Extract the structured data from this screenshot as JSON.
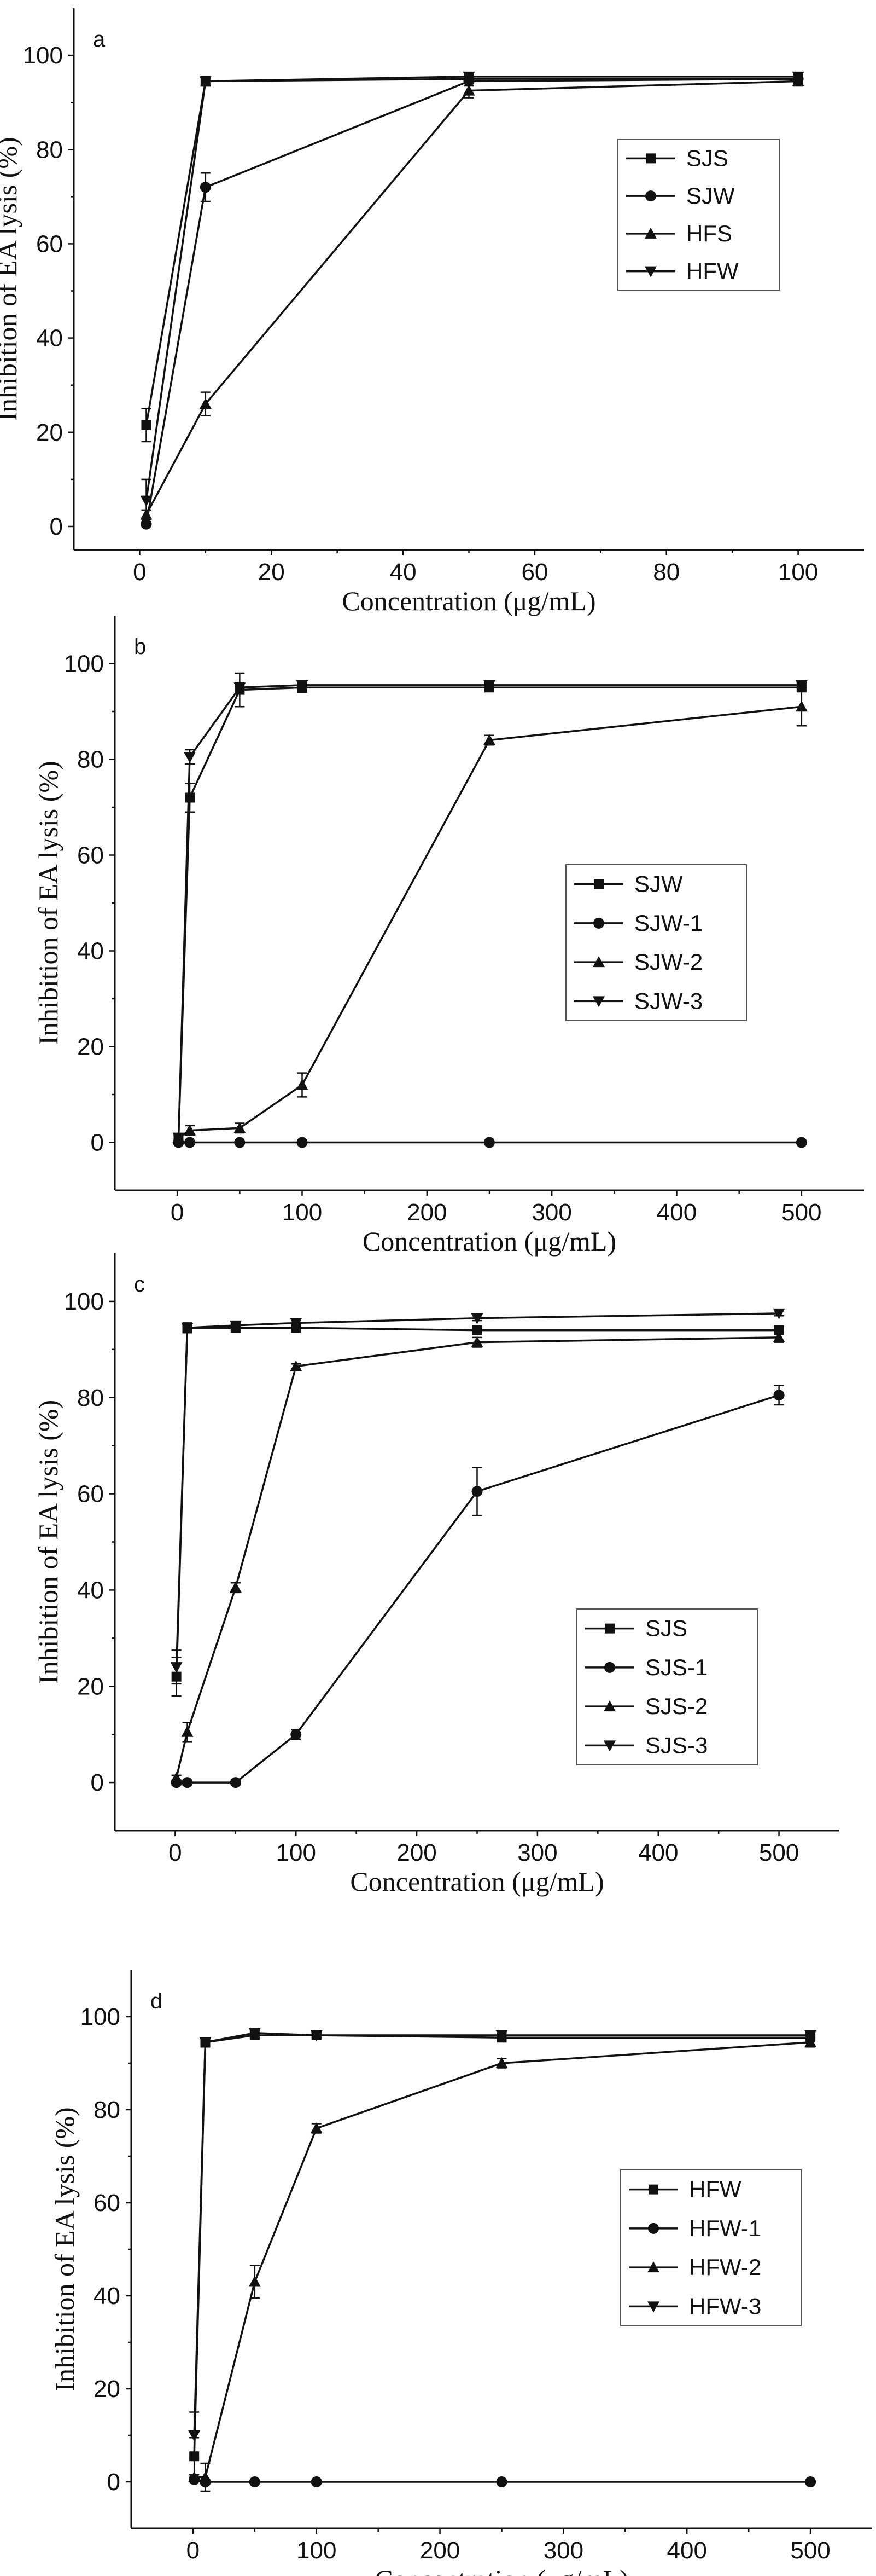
{
  "chart_data": [
    {
      "type": "line",
      "panel_label": "a",
      "xlabel": "Concentration (μg/mL)",
      "ylabel": "Inhibition of EA lysis (%)",
      "xlim": [
        -10,
        110
      ],
      "ylim": [
        -5,
        110
      ],
      "xticks": [
        0,
        20,
        40,
        60,
        80,
        100
      ],
      "yticks": [
        0,
        20,
        40,
        60,
        80,
        100
      ],
      "legend_position": "center-right",
      "series": [
        {
          "name": "SJS",
          "marker": "square",
          "x": [
            1,
            10,
            50,
            100
          ],
          "y": [
            21.5,
            94.5,
            95.0,
            95.0
          ],
          "err": [
            3.5,
            1.0,
            0.5,
            0.5
          ]
        },
        {
          "name": "SJW",
          "marker": "circle",
          "x": [
            1,
            10,
            50,
            100
          ],
          "y": [
            0.5,
            72.0,
            94.5,
            95.0
          ],
          "err": [
            0.5,
            3.0,
            1.0,
            0.5
          ]
        },
        {
          "name": "HFS",
          "marker": "triangle-up",
          "x": [
            1,
            10,
            50,
            100
          ],
          "y": [
            2.5,
            26.0,
            92.5,
            94.5
          ],
          "err": [
            1.0,
            2.5,
            1.5,
            1.0
          ]
        },
        {
          "name": "HFW",
          "marker": "triangle-down",
          "x": [
            1,
            10,
            50,
            100
          ],
          "y": [
            5.5,
            94.5,
            95.5,
            95.5
          ],
          "err": [
            4.5,
            1.0,
            0.5,
            0.5
          ]
        }
      ]
    },
    {
      "type": "line",
      "panel_label": "b",
      "xlabel": "Concentration (μg/mL)",
      "ylabel": "Inhibition of EA lysis (%)",
      "xlim": [
        -50,
        550
      ],
      "ylim": [
        -10,
        110
      ],
      "xticks": [
        0,
        100,
        200,
        300,
        400,
        500
      ],
      "yticks": [
        0,
        20,
        40,
        60,
        80,
        100
      ],
      "legend_position": "center-right",
      "series": [
        {
          "name": "SJW",
          "marker": "square",
          "x": [
            1,
            10,
            50,
            100,
            250,
            500
          ],
          "y": [
            1.0,
            72.0,
            94.5,
            95.0,
            95.0,
            95.0
          ],
          "err": [
            0.5,
            3.0,
            3.5,
            1.0,
            0.5,
            0.5
          ]
        },
        {
          "name": "SJW-1",
          "marker": "circle",
          "x": [
            1,
            10,
            50,
            100,
            250,
            500
          ],
          "y": [
            0,
            0,
            0,
            0,
            0,
            0
          ],
          "err": [
            0,
            0,
            0,
            0,
            0,
            0
          ]
        },
        {
          "name": "SJW-2",
          "marker": "triangle-up",
          "x": [
            1,
            10,
            50,
            100,
            250,
            500
          ],
          "y": [
            1.0,
            2.5,
            3.0,
            12.0,
            84.0,
            91.0
          ],
          "err": [
            0.5,
            1.0,
            1.0,
            2.5,
            1.0,
            4.0
          ]
        },
        {
          "name": "SJW-3",
          "marker": "triangle-down",
          "x": [
            1,
            10,
            50,
            100,
            250,
            500
          ],
          "y": [
            1.0,
            80.5,
            95.0,
            95.5,
            95.5,
            95.5
          ],
          "err": [
            0.5,
            1.5,
            1.0,
            0.5,
            0.5,
            0.5
          ]
        }
      ]
    },
    {
      "type": "line",
      "panel_label": "c",
      "xlabel": "Concentration (μg/mL)",
      "ylabel": "Inhibition of EA lysis (%)",
      "xlim": [
        -50,
        550
      ],
      "ylim": [
        -10,
        110
      ],
      "xticks": [
        0,
        100,
        200,
        300,
        400,
        500
      ],
      "yticks": [
        0,
        20,
        40,
        60,
        80,
        100
      ],
      "legend_position": "center-right",
      "series": [
        {
          "name": "SJS",
          "marker": "square",
          "x": [
            1,
            10,
            50,
            100,
            250,
            500
          ],
          "y": [
            22.0,
            94.5,
            94.5,
            94.5,
            94.0,
            94.0
          ],
          "err": [
            4.0,
            1.0,
            0.5,
            0.5,
            0.5,
            0.5
          ]
        },
        {
          "name": "SJS-1",
          "marker": "circle",
          "x": [
            1,
            10,
            50,
            100,
            250,
            500
          ],
          "y": [
            0,
            0,
            0,
            10.0,
            60.5,
            80.5
          ],
          "err": [
            0.5,
            0.5,
            0.5,
            1.0,
            5.0,
            2.0
          ]
        },
        {
          "name": "SJS-2",
          "marker": "triangle-up",
          "x": [
            1,
            10,
            50,
            100,
            250,
            500
          ],
          "y": [
            1.0,
            10.5,
            40.5,
            86.5,
            91.5,
            92.5
          ],
          "err": [
            0.5,
            2.0,
            1.0,
            0.5,
            1.0,
            1.0
          ]
        },
        {
          "name": "SJS-3",
          "marker": "triangle-down",
          "x": [
            1,
            10,
            50,
            100,
            250,
            500
          ],
          "y": [
            24.0,
            94.5,
            95.0,
            95.5,
            96.5,
            97.5
          ],
          "err": [
            3.5,
            1.0,
            0.5,
            0.5,
            0.5,
            0.5
          ]
        }
      ]
    },
    {
      "type": "line",
      "panel_label": "d",
      "xlabel": "Concentration (μg/mL)",
      "ylabel": "Inhibition of EA lysis (%)",
      "xlim": [
        -50,
        550
      ],
      "ylim": [
        -10,
        110
      ],
      "xticks": [
        0,
        100,
        200,
        300,
        400,
        500
      ],
      "yticks": [
        0,
        20,
        40,
        60,
        80,
        100
      ],
      "legend_position": "center-right",
      "series": [
        {
          "name": "HFW",
          "marker": "square",
          "x": [
            1,
            10,
            50,
            100,
            250,
            500
          ],
          "y": [
            5.5,
            94.5,
            96.0,
            96.0,
            95.5,
            95.5
          ],
          "err": [
            4.0,
            1.0,
            0.5,
            0.5,
            0.5,
            0.5
          ]
        },
        {
          "name": "HFW-1",
          "marker": "circle",
          "x": [
            1,
            10,
            50,
            100,
            250,
            500
          ],
          "y": [
            0.5,
            0,
            0,
            0,
            0,
            0
          ],
          "err": [
            0.5,
            0.5,
            0,
            0,
            0,
            0
          ]
        },
        {
          "name": "HFW-2",
          "marker": "triangle-up",
          "x": [
            1,
            10,
            50,
            100,
            250,
            500
          ],
          "y": [
            1.0,
            1.0,
            43.0,
            76.0,
            90.0,
            94.5
          ],
          "err": [
            0.5,
            3.0,
            3.5,
            1.0,
            1.0,
            1.0
          ]
        },
        {
          "name": "HFW-3",
          "marker": "triangle-down",
          "x": [
            1,
            10,
            50,
            100,
            250,
            500
          ],
          "y": [
            10.0,
            94.5,
            96.5,
            96.0,
            96.0,
            96.0
          ],
          "err": [
            5.0,
            1.0,
            0.5,
            0.5,
            0.5,
            0.5
          ]
        }
      ]
    }
  ]
}
